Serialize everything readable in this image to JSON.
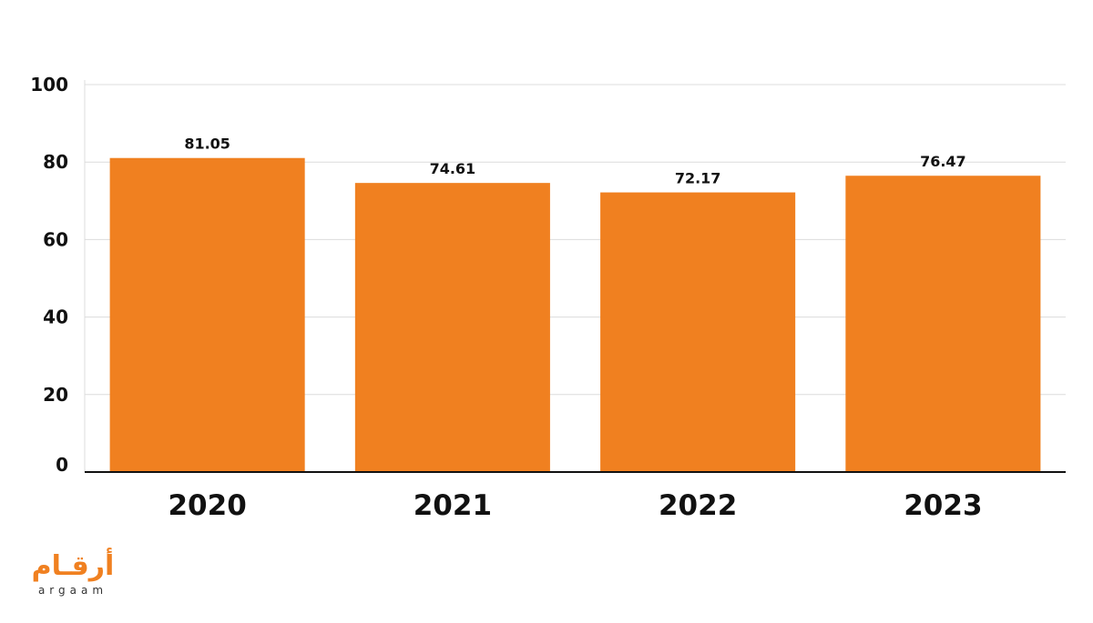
{
  "chart_data": {
    "type": "bar",
    "categories": [
      "2020",
      "2021",
      "2022",
      "2023"
    ],
    "values": [
      81.05,
      74.61,
      72.17,
      76.47
    ],
    "value_labels": [
      "81.05",
      "74.61",
      "72.17",
      "76.47"
    ],
    "ylim": [
      0,
      100
    ],
    "yticks": [
      0,
      20,
      40,
      60,
      80,
      100
    ],
    "title": "",
    "xlabel": "",
    "ylabel": "",
    "grid": true,
    "bar_color": "#f08020"
  },
  "logo": {
    "arabic": "أرقـام",
    "latin": "argaam"
  }
}
